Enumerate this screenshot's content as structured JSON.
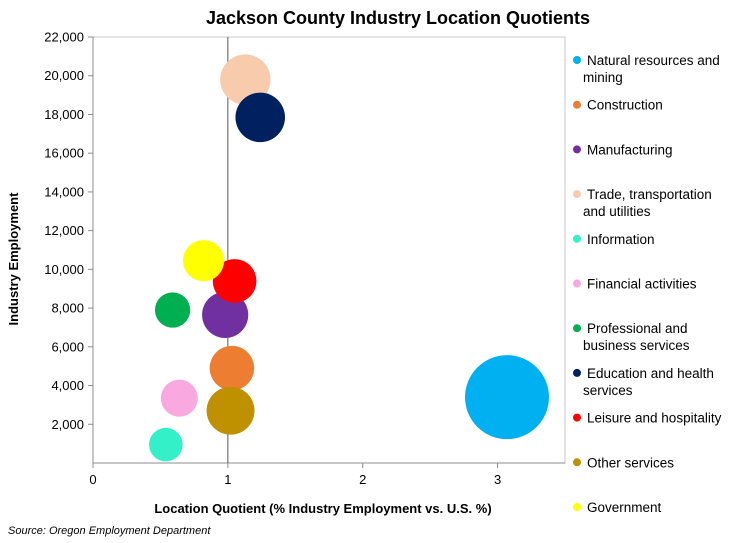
{
  "chart_data": {
    "type": "scatter",
    "subtype": "bubble",
    "title": "Jackson County Industry Location Quotients",
    "xlabel": "Location Quotient (% Industry Employment vs. U.S. %)",
    "ylabel": "Industry Employment",
    "xlim": [
      0,
      3.5
    ],
    "ylim": [
      0,
      22000
    ],
    "x_ticks": [
      0,
      1,
      2,
      3
    ],
    "x_tick_labels": [
      "0",
      "1",
      "2",
      "3"
    ],
    "y_ticks": [
      2000,
      4000,
      6000,
      8000,
      10000,
      12000,
      14000,
      16000,
      18000,
      20000,
      22000
    ],
    "y_tick_labels": [
      "2,000",
      "4,000",
      "6,000",
      "8,000",
      "10,000",
      "12,000",
      "14,000",
      "16,000",
      "18,000",
      "20,000",
      "22,000"
    ],
    "reference_line_x": 1,
    "grid": false,
    "legend_position": "right",
    "size_encoding": "relative bubble size",
    "series": [
      {
        "name": "Natural resources and mining",
        "name_lines": [
          "Natural resources and",
          "mining"
        ],
        "color": "#00b0f0",
        "x": 3.07,
        "y": 3400,
        "size": 1.0
      },
      {
        "name": "Construction",
        "name_lines": [
          "Construction"
        ],
        "color": "#ed7d31",
        "x": 1.03,
        "y": 4900,
        "size": 0.53
      },
      {
        "name": "Manufacturing",
        "name_lines": [
          "Manufacturing"
        ],
        "color": "#7030a0",
        "x": 0.98,
        "y": 7650,
        "size": 0.55
      },
      {
        "name": "Trade, transportation and utilities",
        "name_lines": [
          "Trade, transportation",
          "and utilities"
        ],
        "color": "#f8cbad",
        "x": 1.13,
        "y": 19800,
        "size": 0.6
      },
      {
        "name": "Information",
        "name_lines": [
          "Information"
        ],
        "color": "#33f0c8",
        "x": 0.54,
        "y": 950,
        "size": 0.4
      },
      {
        "name": "Financial activities",
        "name_lines": [
          "Financial activities"
        ],
        "color": "#f9a8e0",
        "x": 0.64,
        "y": 3350,
        "size": 0.44
      },
      {
        "name": "Professional and business services",
        "name_lines": [
          "Professional and",
          "business services"
        ],
        "color": "#00b050",
        "x": 0.59,
        "y": 7900,
        "size": 0.42
      },
      {
        "name": "Education and health services",
        "name_lines": [
          "Education and health",
          "services"
        ],
        "color": "#002060",
        "x": 1.24,
        "y": 17850,
        "size": 0.59
      },
      {
        "name": "Leisure and hospitality",
        "name_lines": [
          "Leisure and hospitality"
        ],
        "color": "#ff0000",
        "x": 1.05,
        "y": 9400,
        "size": 0.52
      },
      {
        "name": "Other services",
        "name_lines": [
          "Other services"
        ],
        "color": "#bf9000",
        "x": 1.02,
        "y": 2700,
        "size": 0.57
      },
      {
        "name": "Government",
        "name_lines": [
          "Government"
        ],
        "color": "#ffff00",
        "x": 0.82,
        "y": 10450,
        "size": 0.49
      }
    ]
  },
  "source_note": "Source: Oregon Employment Department"
}
